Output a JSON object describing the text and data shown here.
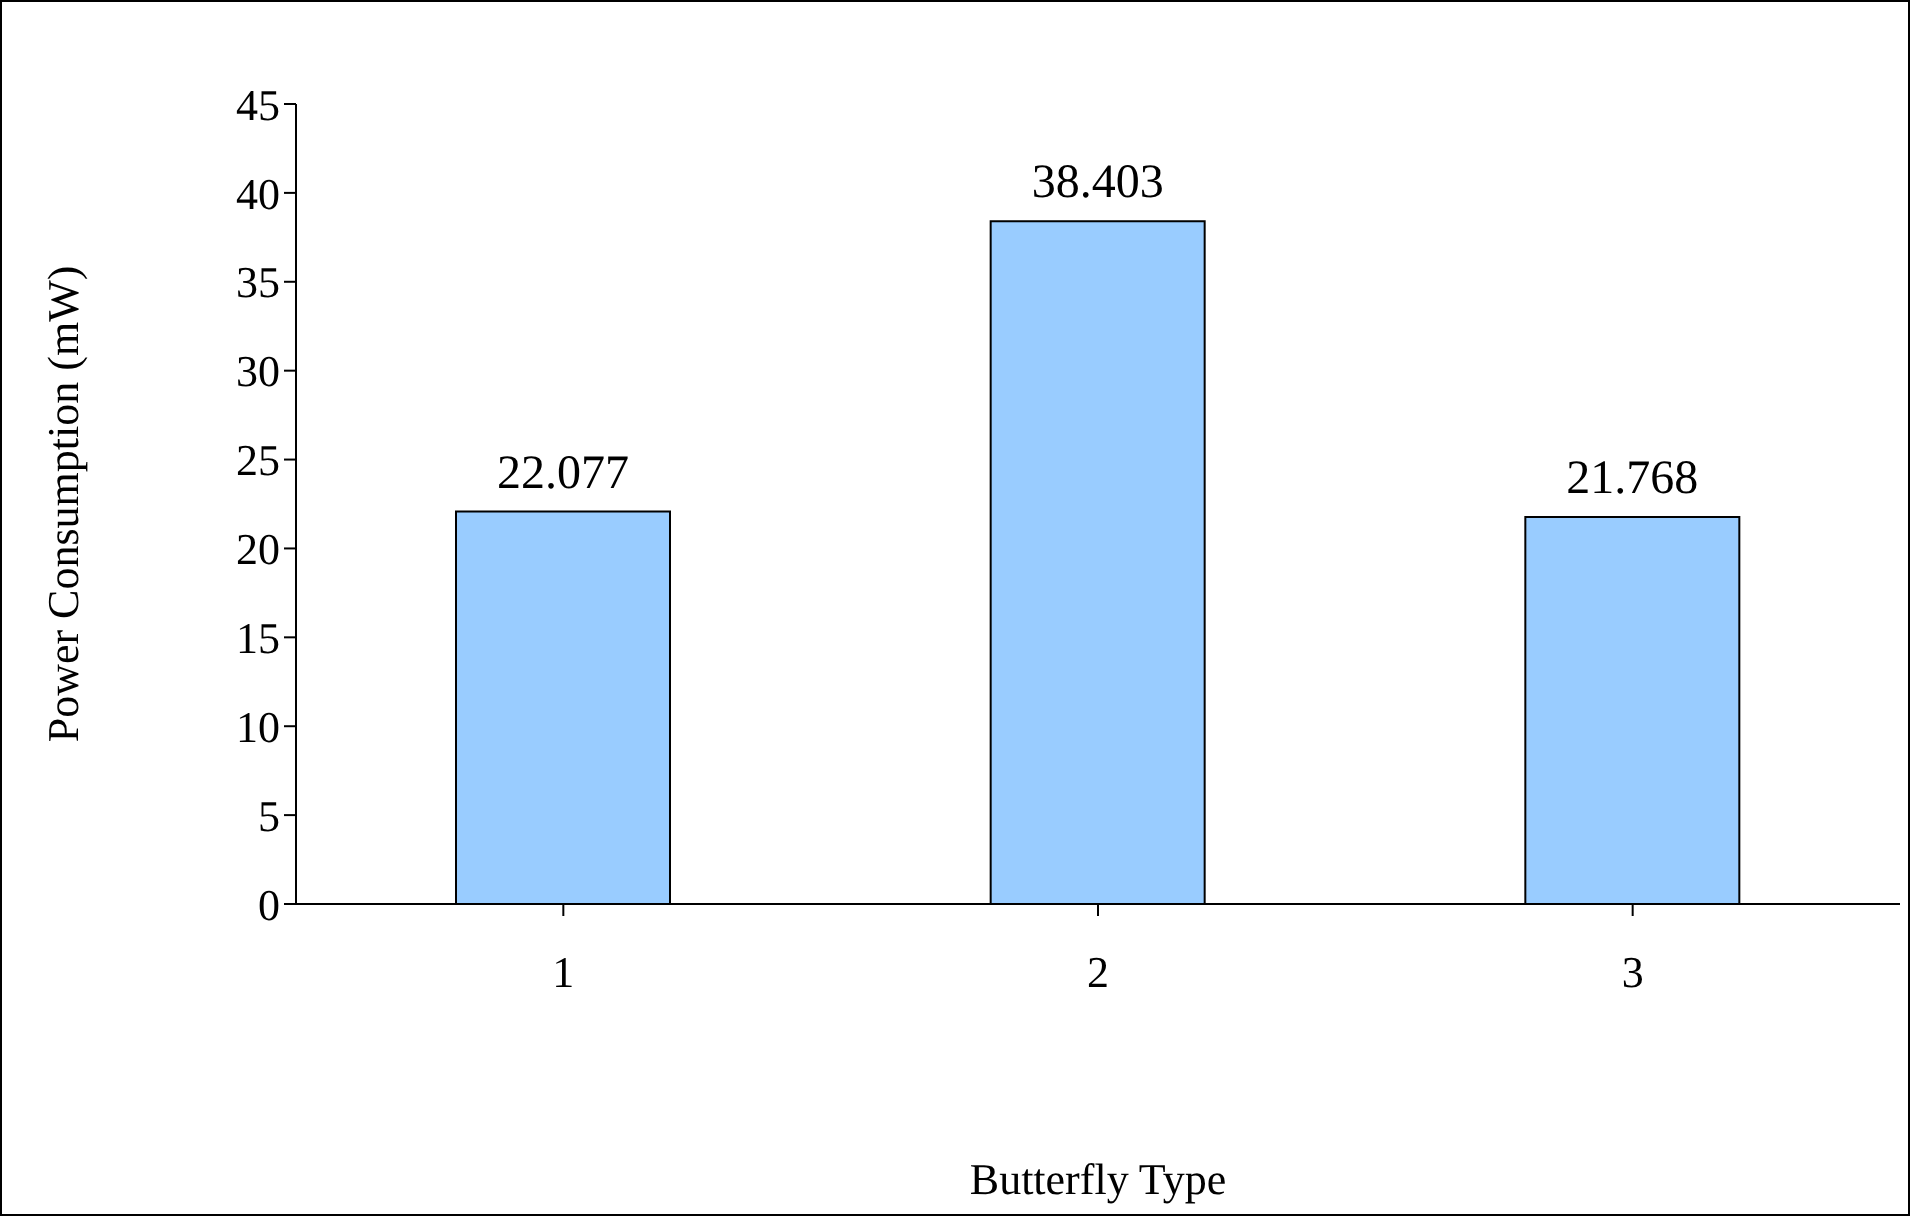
{
  "chart_data": {
    "type": "bar",
    "xlabel": "Butterfly Type",
    "ylabel": "Power Consumption (mW)",
    "categories": [
      "1",
      "2",
      "3"
    ],
    "values": [
      22.077,
      38.403,
      21.768
    ],
    "color": "#99ccff",
    "ylim": [
      0,
      45
    ],
    "yticks": [
      0,
      5,
      10,
      15,
      20,
      25,
      30,
      35,
      40,
      45
    ],
    "data_labels": true
  }
}
